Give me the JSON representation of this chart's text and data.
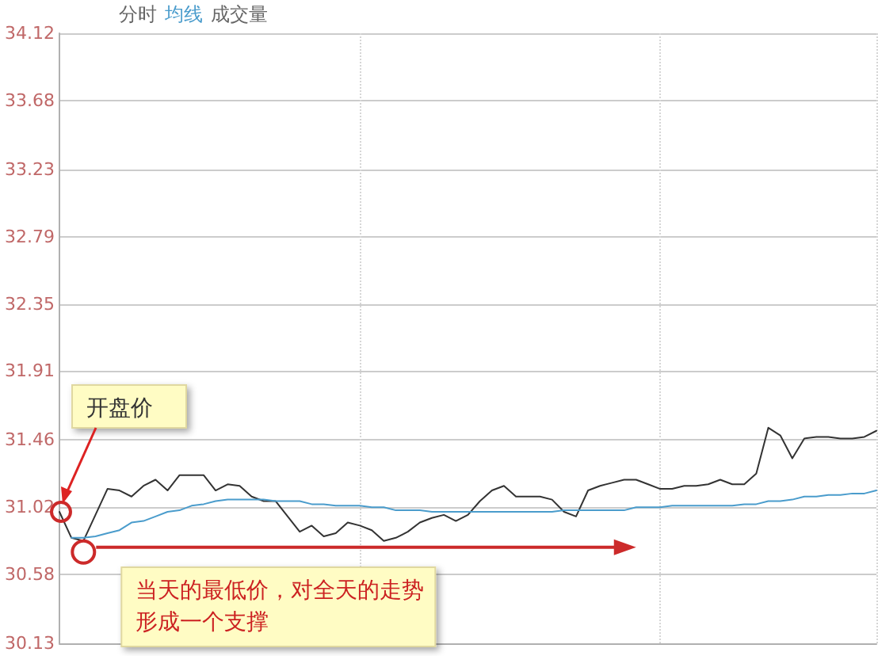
{
  "chart_data": {
    "type": "line",
    "grid": true,
    "ylim": [
      30.13,
      34.12
    ],
    "yticks": [
      30.13,
      30.58,
      31.02,
      31.46,
      31.91,
      32.35,
      32.79,
      33.23,
      33.68,
      34.12
    ],
    "categories": [
      null,
      null,
      null,
      null,
      null,
      null,
      null,
      null,
      null,
      null,
      null,
      null,
      null,
      null,
      null,
      null,
      null,
      null,
      null,
      null,
      null,
      null,
      null,
      null,
      null,
      null,
      null,
      null,
      null,
      null,
      null,
      null,
      null,
      null,
      null,
      null,
      null,
      null,
      null,
      null,
      null,
      null,
      null,
      null,
      null,
      null,
      null,
      null,
      null,
      null,
      null,
      null,
      null,
      null,
      null,
      null,
      null,
      null,
      null,
      null,
      null,
      null,
      null,
      null,
      null,
      null,
      null,
      null,
      null
    ],
    "series": [
      {
        "color": "#333333",
        "values": [
          30.99,
          30.82,
          30.8,
          30.97,
          31.14,
          31.13,
          31.09,
          31.16,
          31.2,
          31.13,
          31.23,
          31.23,
          31.23,
          31.13,
          31.17,
          31.16,
          31.09,
          31.06,
          31.06,
          30.96,
          30.86,
          30.9,
          30.83,
          30.85,
          30.92,
          30.9,
          30.87,
          30.8,
          30.82,
          30.86,
          30.92,
          30.95,
          30.97,
          30.93,
          30.97,
          31.06,
          31.13,
          31.16,
          31.09,
          31.09,
          31.09,
          31.07,
          30.99,
          30.96,
          31.13,
          31.16,
          31.18,
          31.2,
          31.2,
          31.17,
          31.14,
          31.14,
          31.16,
          31.16,
          31.17,
          31.2,
          31.17,
          31.17,
          31.24,
          31.54,
          31.49,
          31.34,
          31.47,
          31.48,
          31.48,
          31.47,
          31.47,
          31.48,
          31.52
        ]
      },
      {
        "name": "均线",
        "color": "#4a9ccc",
        "values": [
          null,
          30.82,
          30.82,
          30.83,
          30.85,
          30.87,
          30.92,
          30.93,
          30.96,
          30.99,
          31,
          31.03,
          31.04,
          31.06,
          31.07,
          31.07,
          31.07,
          31.07,
          31.06,
          31.06,
          31.06,
          31.04,
          31.04,
          31.03,
          31.03,
          31.03,
          31.02,
          31.02,
          31,
          31,
          31,
          30.99,
          30.99,
          30.99,
          30.99,
          30.99,
          30.99,
          30.99,
          30.99,
          30.99,
          30.99,
          30.99,
          31,
          31,
          31,
          31,
          31,
          31,
          31.02,
          31.02,
          31.02,
          31.03,
          31.03,
          31.03,
          31.03,
          31.03,
          31.03,
          31.04,
          31.04,
          31.06,
          31.06,
          31.07,
          31.09,
          31.09,
          31.1,
          31.1,
          31.11,
          31.11,
          31.13
        ]
      }
    ],
    "annotations": [
      "分时",
      "成交量",
      "开盘价",
      "当天的最低价，对全天的走势形成一个支撑"
    ]
  }
}
